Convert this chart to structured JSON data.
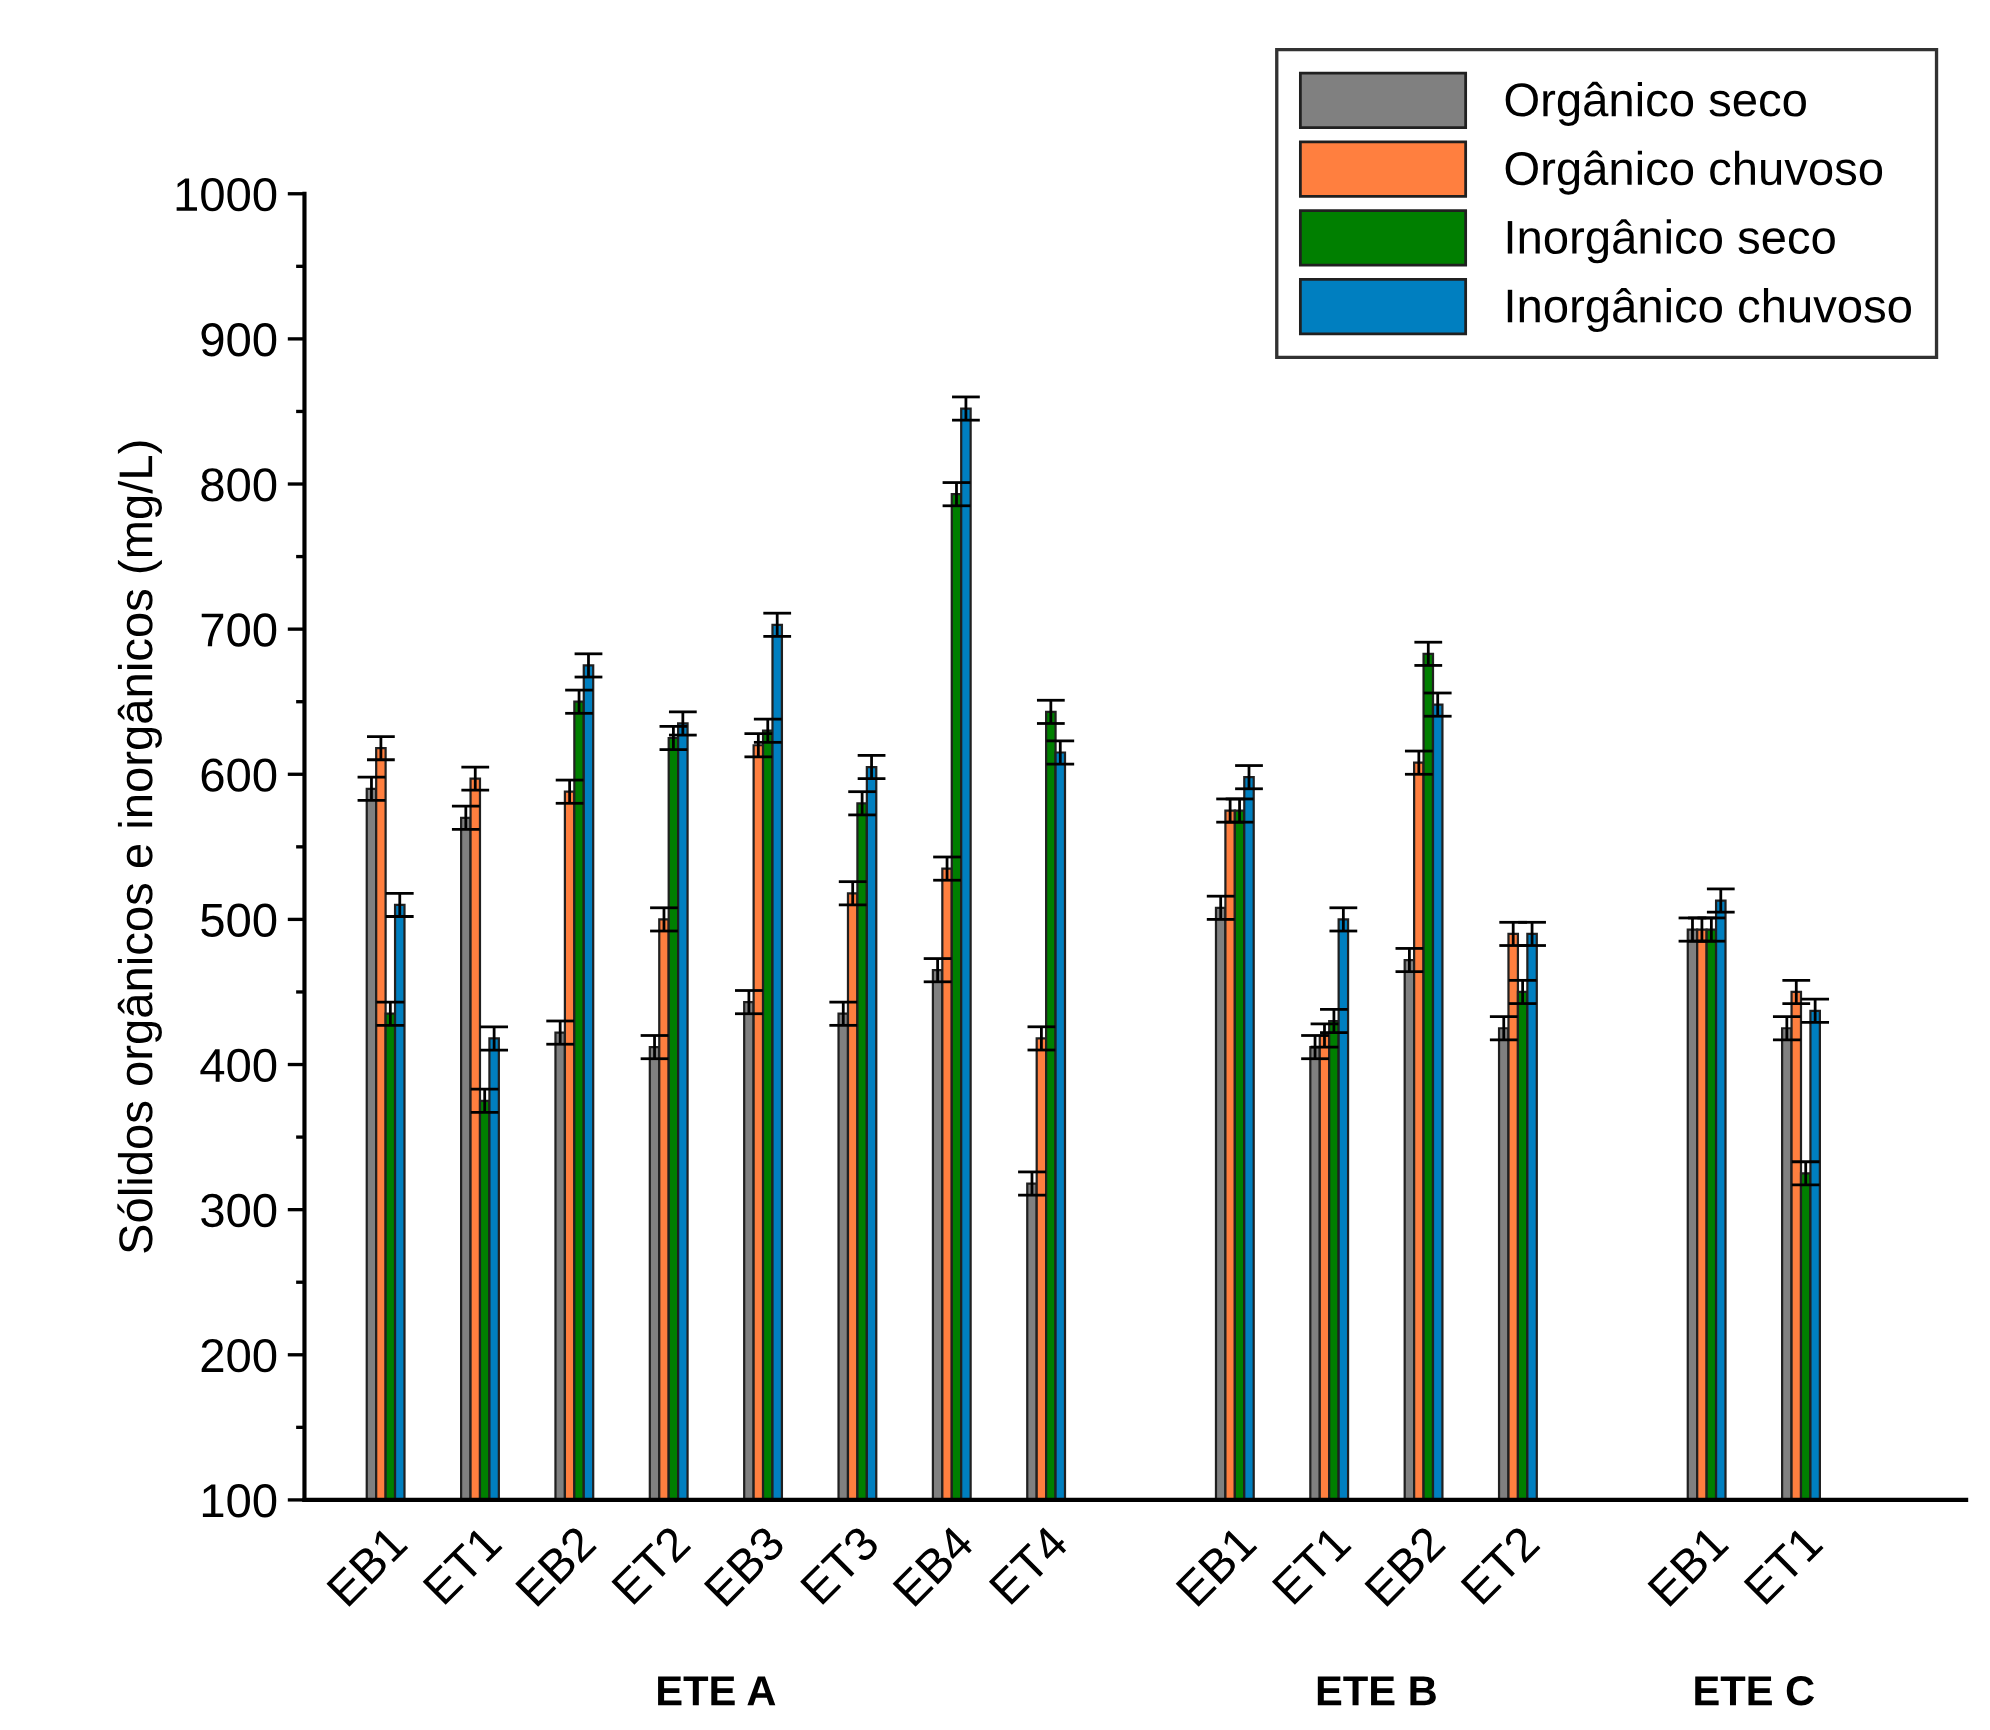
{
  "chart_data": {
    "type": "bar",
    "ylabel": "Sólidos orgânicos e inorgânicos (mg/L)",
    "categories": [
      "EB1",
      "ET1",
      "EB2",
      "ET2",
      "EB3",
      "ET3",
      "EB4",
      "ET4",
      null,
      "EB1",
      "ET1",
      "EB2",
      "ET2",
      null,
      "EB1",
      "ET1"
    ],
    "series": [
      {
        "name": "Orgânico seco",
        "color": "#808080",
        "values": [
          590,
          570,
          422,
          412,
          443,
          435,
          465,
          318,
          null,
          508,
          412,
          472,
          425,
          null,
          493,
          425
        ],
        "errors": [
          8,
          8,
          8,
          8,
          8,
          8,
          8,
          8,
          null,
          8,
          8,
          8,
          8,
          null,
          8,
          8
        ]
      },
      {
        "name": "Orgânico chuvoso",
        "color": "#ff7f3f",
        "values": [
          618,
          597,
          588,
          500,
          620,
          518,
          535,
          418,
          null,
          575,
          420,
          608,
          490,
          null,
          493,
          450
        ],
        "errors": [
          8,
          8,
          8,
          8,
          8,
          8,
          8,
          8,
          null,
          8,
          8,
          8,
          8,
          null,
          8,
          8
        ]
      },
      {
        "name": "Inorgânico seco",
        "color": "#007f00",
        "values": [
          435,
          375,
          650,
          625,
          630,
          580,
          793,
          643,
          null,
          575,
          430,
          683,
          450,
          null,
          493,
          325
        ],
        "errors": [
          8,
          8,
          8,
          8,
          8,
          8,
          8,
          8,
          null,
          8,
          8,
          8,
          8,
          null,
          8,
          8
        ]
      },
      {
        "name": "Inorgânico chuvoso",
        "color": "#007fc0",
        "values": [
          510,
          418,
          675,
          635,
          703,
          605,
          852,
          615,
          null,
          598,
          500,
          648,
          490,
          null,
          513,
          437
        ],
        "errors": [
          8,
          8,
          8,
          8,
          8,
          8,
          8,
          8,
          null,
          8,
          8,
          8,
          8,
          null,
          8,
          8
        ]
      }
    ],
    "ylim": [
      100,
      1000
    ],
    "yticks": [
      100,
      200,
      300,
      400,
      500,
      600,
      700,
      800,
      900,
      1000
    ],
    "annotations": [
      "ETE A",
      "ETE B",
      "ETE C"
    ],
    "legend": "top right",
    "grid": false
  }
}
